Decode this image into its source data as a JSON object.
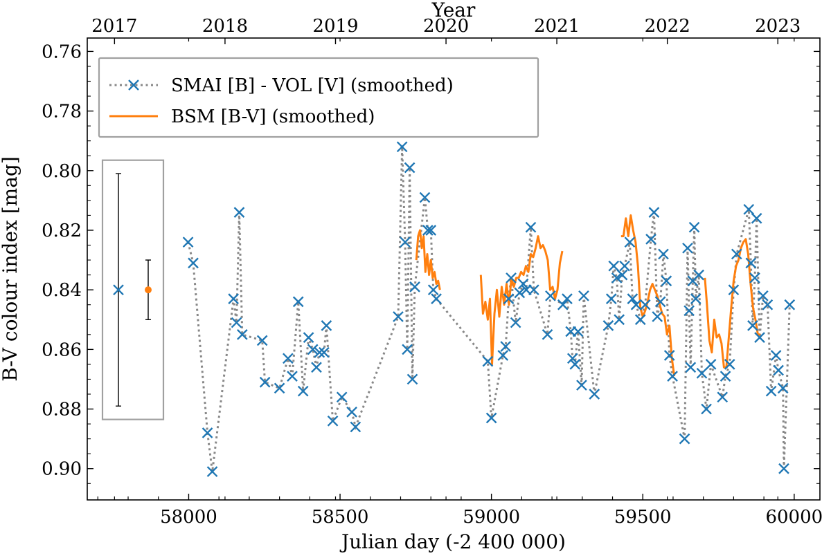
{
  "chart_data": {
    "type": "scatter",
    "title": "",
    "xlabel": "Julian day (-2 400 000)",
    "ylabel": "B-V colour index [mag]",
    "top_xlabel": "Year",
    "xlim": [
      57665,
      60085
    ],
    "ylim": [
      0.9105,
      0.7555
    ],
    "x_ticks": [
      58000,
      58500,
      59000,
      59500,
      60000
    ],
    "x_tick_labels": [
      "58000",
      "58500",
      "59000",
      "59500",
      "60000"
    ],
    "y_ticks": [
      0.76,
      0.78,
      0.8,
      0.82,
      0.84,
      0.86,
      0.88,
      0.9
    ],
    "y_tick_labels": [
      "0.76",
      "0.78",
      "0.80",
      "0.82",
      "0.84",
      "0.86",
      "0.88",
      "0.90"
    ],
    "year_ticks": [
      {
        "label": "2017",
        "jd": 57755
      },
      {
        "label": "2018",
        "jd": 58120
      },
      {
        "label": "2019",
        "jd": 58485
      },
      {
        "label": "2020",
        "jd": 58850
      },
      {
        "label": "2021",
        "jd": 59216
      },
      {
        "label": "2022",
        "jd": 59581
      },
      {
        "label": "2023",
        "jd": 59946
      }
    ],
    "legend_position": "top-left",
    "grid": false,
    "series": [
      {
        "name": "SMAI [B] - VOL [V] (smoothed)",
        "color": "#1f77b4",
        "line_color": "#888888",
        "marker": "x",
        "line_style": "dotted",
        "points": [
          [
            57998,
            0.824
          ],
          [
            58015,
            0.831
          ],
          [
            58062,
            0.888
          ],
          [
            58078,
            0.901
          ],
          [
            58148,
            0.843
          ],
          [
            58158,
            0.851
          ],
          [
            58167,
            0.814
          ],
          [
            58177,
            0.855
          ],
          [
            58243,
            0.857
          ],
          [
            58252,
            0.871
          ],
          [
            58300,
            0.873
          ],
          [
            58328,
            0.863
          ],
          [
            58342,
            0.869
          ],
          [
            58362,
            0.844
          ],
          [
            58378,
            0.874
          ],
          [
            58396,
            0.856
          ],
          [
            58410,
            0.86
          ],
          [
            58422,
            0.866
          ],
          [
            58432,
            0.861
          ],
          [
            58447,
            0.861
          ],
          [
            58455,
            0.852
          ],
          [
            58476,
            0.884
          ],
          [
            58506,
            0.876
          ],
          [
            58539,
            0.881
          ],
          [
            58551,
            0.886
          ],
          [
            58692,
            0.849
          ],
          [
            58705,
            0.792
          ],
          [
            58715,
            0.824
          ],
          [
            58722,
            0.86
          ],
          [
            58730,
            0.799
          ],
          [
            58739,
            0.87
          ],
          [
            58747,
            0.839
          ],
          [
            58780,
            0.809
          ],
          [
            58790,
            0.82
          ],
          [
            58800,
            0.82
          ],
          [
            58808,
            0.84
          ],
          [
            58818,
            0.843
          ],
          [
            58988,
            0.864
          ],
          [
            59000,
            0.883
          ],
          [
            59038,
            0.862
          ],
          [
            59047,
            0.859
          ],
          [
            59057,
            0.843
          ],
          [
            59065,
            0.836
          ],
          [
            59080,
            0.851
          ],
          [
            59093,
            0.841
          ],
          [
            59105,
            0.838
          ],
          [
            59115,
            0.84
          ],
          [
            59130,
            0.819
          ],
          [
            59140,
            0.84
          ],
          [
            59185,
            0.855
          ],
          [
            59195,
            0.842
          ],
          [
            59236,
            0.845
          ],
          [
            59250,
            0.843
          ],
          [
            59262,
            0.854
          ],
          [
            59268,
            0.863
          ],
          [
            59276,
            0.865
          ],
          [
            59286,
            0.854
          ],
          [
            59298,
            0.872
          ],
          [
            59305,
            0.842
          ],
          [
            59340,
            0.875
          ],
          [
            59386,
            0.852
          ],
          [
            59396,
            0.843
          ],
          [
            59404,
            0.832
          ],
          [
            59414,
            0.836
          ],
          [
            59422,
            0.85
          ],
          [
            59432,
            0.835
          ],
          [
            59440,
            0.832
          ],
          [
            59457,
            0.824
          ],
          [
            59466,
            0.843
          ],
          [
            59478,
            0.845
          ],
          [
            59492,
            0.85
          ],
          [
            59508,
            0.845
          ],
          [
            59527,
            0.823
          ],
          [
            59537,
            0.814
          ],
          [
            59548,
            0.849
          ],
          [
            59558,
            0.844
          ],
          [
            59568,
            0.828
          ],
          [
            59578,
            0.837
          ],
          [
            59588,
            0.862
          ],
          [
            59598,
            0.869
          ],
          [
            59638,
            0.89
          ],
          [
            59648,
            0.826
          ],
          [
            59653,
            0.847
          ],
          [
            59658,
            0.866
          ],
          [
            59665,
            0.837
          ],
          [
            59670,
            0.819
          ],
          [
            59675,
            0.843
          ],
          [
            59685,
            0.835
          ],
          [
            59695,
            0.868
          ],
          [
            59710,
            0.88
          ],
          [
            59725,
            0.865
          ],
          [
            59763,
            0.876
          ],
          [
            59773,
            0.869
          ],
          [
            59787,
            0.865
          ],
          [
            59800,
            0.84
          ],
          [
            59810,
            0.828
          ],
          [
            59850,
            0.813
          ],
          [
            59857,
            0.831
          ],
          [
            59863,
            0.852
          ],
          [
            59870,
            0.836
          ],
          [
            59876,
            0.816
          ],
          [
            59886,
            0.856
          ],
          [
            59897,
            0.842
          ],
          [
            59912,
            0.845
          ],
          [
            59924,
            0.874
          ],
          [
            59940,
            0.862
          ],
          [
            59948,
            0.867
          ],
          [
            59963,
            0.873
          ],
          [
            59966,
            0.9
          ],
          [
            59985,
            0.845
          ]
        ]
      },
      {
        "name": "BSM [B-V] (smoothed)",
        "color": "#ff7f0e",
        "marker": "none",
        "line_style": "solid",
        "segments": [
          [
            [
              58752,
              0.83
            ],
            [
              58758,
              0.822
            ],
            [
              58764,
              0.82
            ],
            [
              58770,
              0.826
            ],
            [
              58776,
              0.822
            ],
            [
              58782,
              0.834
            ],
            [
              58788,
              0.828
            ],
            [
              58794,
              0.835
            ],
            [
              58800,
              0.83
            ],
            [
              58806,
              0.836
            ],
            [
              58812,
              0.834
            ],
            [
              58818,
              0.838
            ],
            [
              58824,
              0.837
            ],
            [
              58830,
              0.84
            ]
          ],
          [
            [
              58965,
              0.835
            ],
            [
              58972,
              0.848
            ],
            [
              58980,
              0.844
            ],
            [
              58988,
              0.85
            ],
            [
              58995,
              0.843
            ],
            [
              59002,
              0.865
            ],
            [
              59010,
              0.848
            ],
            [
              59018,
              0.84
            ],
            [
              59026,
              0.849
            ],
            [
              59034,
              0.839
            ],
            [
              59042,
              0.845
            ],
            [
              59050,
              0.838
            ],
            [
              59058,
              0.845
            ],
            [
              59066,
              0.836
            ],
            [
              59074,
              0.839
            ],
            [
              59082,
              0.836
            ],
            [
              59090,
              0.836
            ],
            [
              59098,
              0.834
            ],
            [
              59106,
              0.835
            ],
            [
              59114,
              0.832
            ],
            [
              59122,
              0.834
            ],
            [
              59130,
              0.828
            ],
            [
              59138,
              0.829
            ],
            [
              59146,
              0.826
            ],
            [
              59154,
              0.822
            ],
            [
              59162,
              0.826
            ],
            [
              59170,
              0.825
            ],
            [
              59178,
              0.827
            ],
            [
              59186,
              0.83
            ],
            [
              59194,
              0.84
            ],
            [
              59202,
              0.839
            ],
            [
              59210,
              0.843
            ],
            [
              59218,
              0.84
            ],
            [
              59226,
              0.831
            ],
            [
              59234,
              0.827
            ]
          ],
          [
            [
              59428,
              0.822
            ],
            [
              59436,
              0.822
            ],
            [
              59444,
              0.816
            ],
            [
              59452,
              0.822
            ],
            [
              59460,
              0.815
            ],
            [
              59468,
              0.82
            ],
            [
              59476,
              0.824
            ],
            [
              59484,
              0.832
            ],
            [
              59492,
              0.846
            ],
            [
              59500,
              0.849
            ],
            [
              59508,
              0.847
            ],
            [
              59516,
              0.844
            ],
            [
              59524,
              0.84
            ],
            [
              59532,
              0.838
            ],
            [
              59540,
              0.84
            ],
            [
              59548,
              0.842
            ],
            [
              59556,
              0.845
            ],
            [
              59564,
              0.848
            ],
            [
              59572,
              0.849
            ],
            [
              59580,
              0.855
            ],
            [
              59588,
              0.852
            ],
            [
              59596,
              0.863
            ],
            [
              59604,
              0.869
            ]
          ],
          [
            [
              59705,
              0.836
            ],
            [
              59712,
              0.845
            ],
            [
              59720,
              0.857
            ],
            [
              59728,
              0.861
            ],
            [
              59736,
              0.85
            ],
            [
              59744,
              0.856
            ],
            [
              59752,
              0.855
            ],
            [
              59760,
              0.858
            ],
            [
              59768,
              0.866
            ],
            [
              59776,
              0.866
            ],
            [
              59784,
              0.856
            ],
            [
              59792,
              0.846
            ],
            [
              59800,
              0.837
            ],
            [
              59808,
              0.832
            ],
            [
              59816,
              0.83
            ],
            [
              59824,
              0.826
            ],
            [
              59832,
              0.824
            ],
            [
              59840,
              0.823
            ],
            [
              59848,
              0.828
            ],
            [
              59856,
              0.838
            ],
            [
              59864,
              0.846
            ],
            [
              59872,
              0.85
            ],
            [
              59880,
              0.855
            ],
            [
              59888,
              0.855
            ]
          ]
        ]
      }
    ],
    "error_bars": [
      {
        "name": "SMAI [B] - VOL [V] typical error",
        "color": "#1f77b4",
        "marker": "x",
        "center": 0.84,
        "low": 0.801,
        "high": 0.879
      },
      {
        "name": "BSM [B-V] typical error",
        "color": "#ff7f0e",
        "marker": "dot",
        "center": 0.84,
        "low": 0.83,
        "high": 0.85
      }
    ]
  }
}
